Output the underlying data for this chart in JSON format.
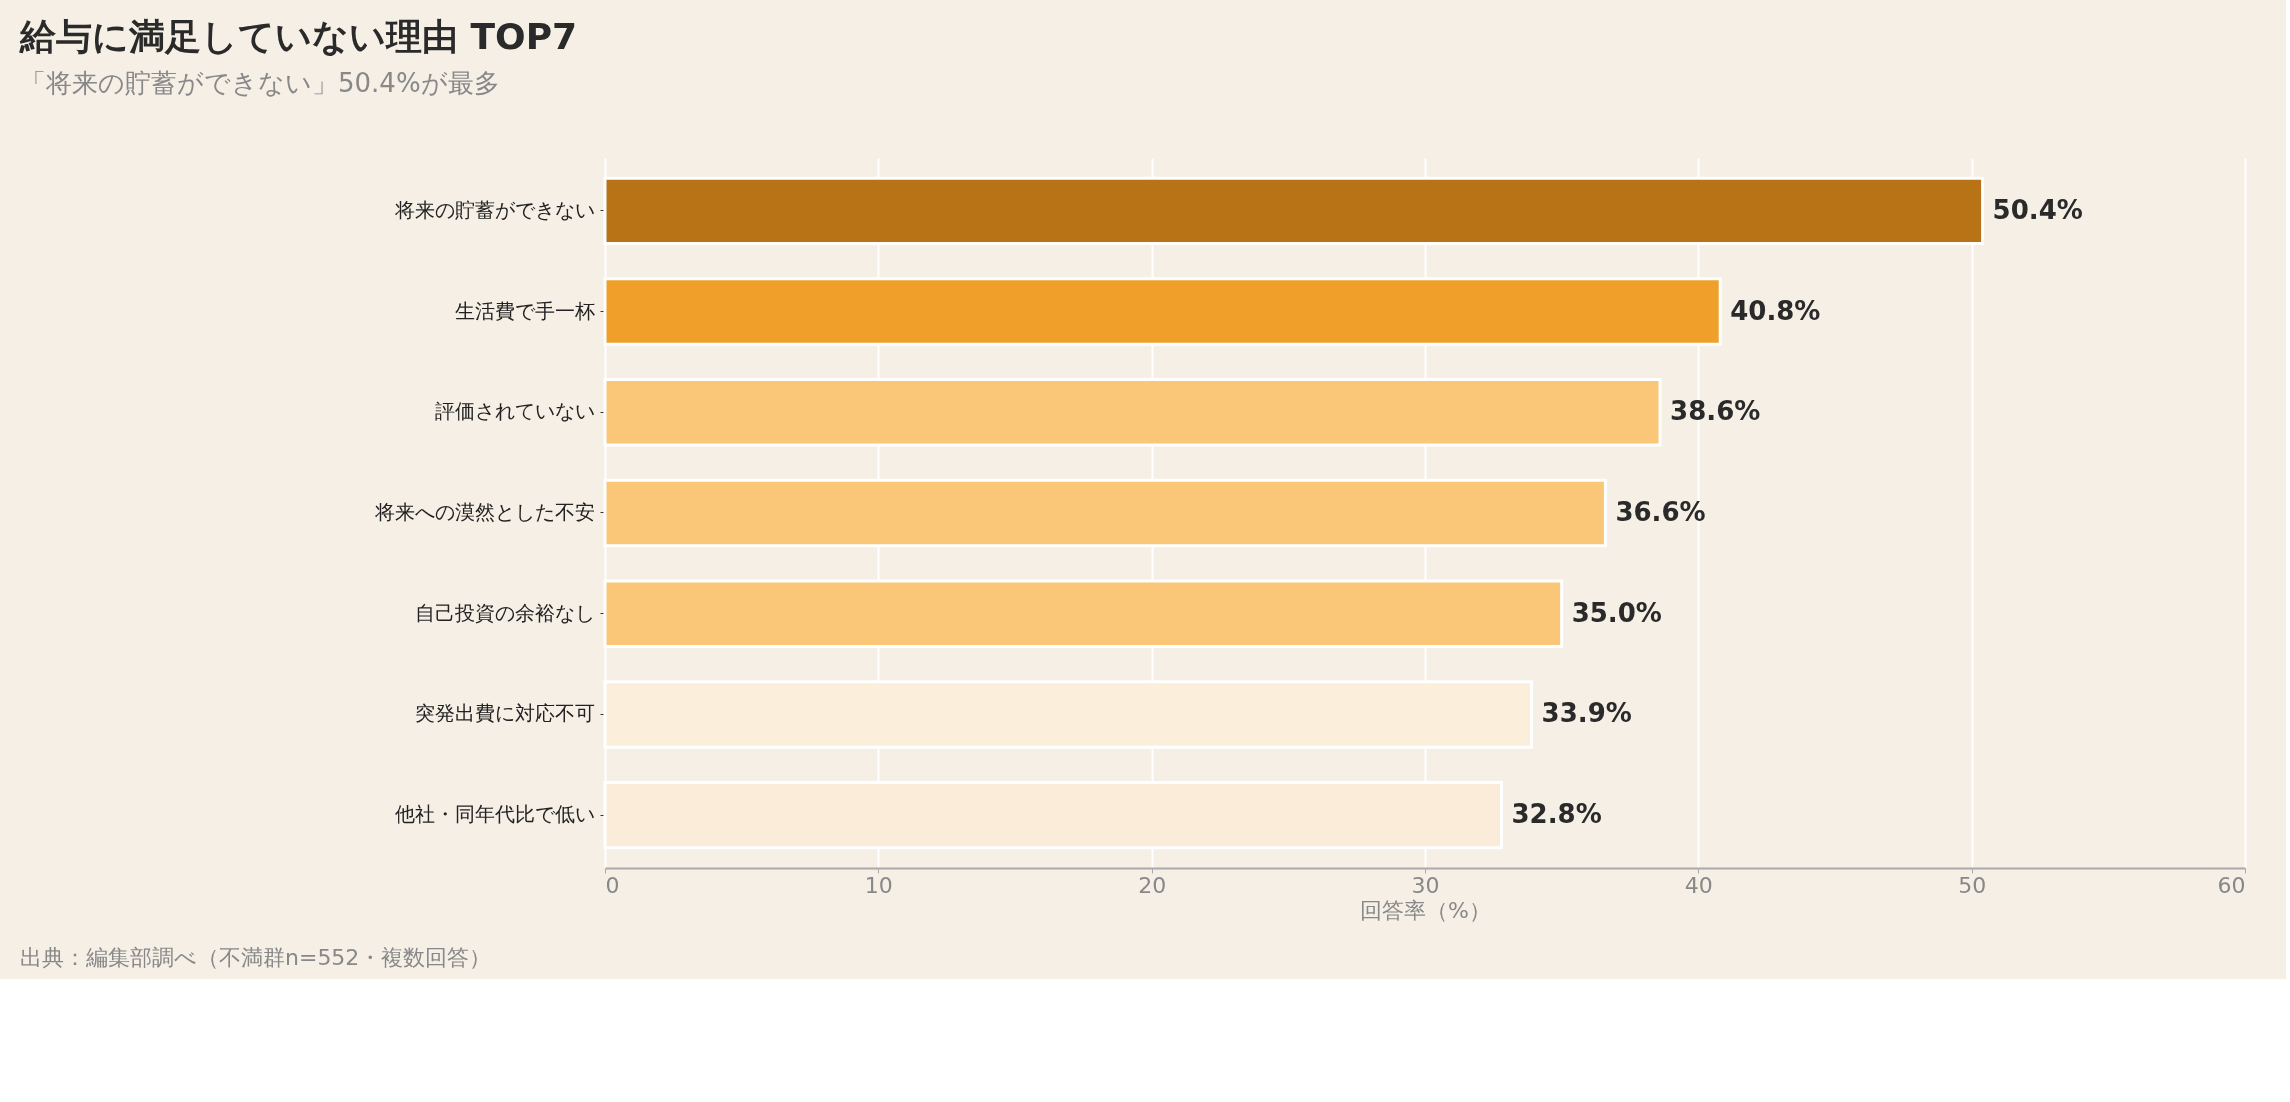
{
  "chart_data": {
    "type": "bar",
    "orientation": "horizontal",
    "title": "給与に満足していない理由 TOP7",
    "subtitle": "「将来の貯蓄ができない」50.4%が最多",
    "categories": [
      "将来の貯蓄ができない",
      "生活費で手一杯",
      "評価されていない",
      "将来への漠然とした不安",
      "自己投資の余裕なし",
      "突発出費に対応不可",
      "他社・同年代比で低い"
    ],
    "values": [
      50.4,
      40.8,
      38.6,
      36.6,
      35.0,
      33.9,
      32.8
    ],
    "colors": [
      "#b87317",
      "#f0a02a",
      "#f9c777",
      "#f9c777",
      "#f9c777",
      "#fbefdc",
      "#faecd9"
    ],
    "value_labels": [
      "50.4%",
      "40.8%",
      "38.6%",
      "36.6%",
      "35.0%",
      "33.9%",
      "32.8%"
    ],
    "xlim": [
      0,
      60
    ],
    "xticks": [
      0,
      10,
      20,
      30,
      40,
      50,
      60
    ],
    "xlabel": "回答率（%）",
    "grid": "x",
    "annotations": [
      "出典：編集部調べ（不満群n=552・複数回答）"
    ]
  }
}
